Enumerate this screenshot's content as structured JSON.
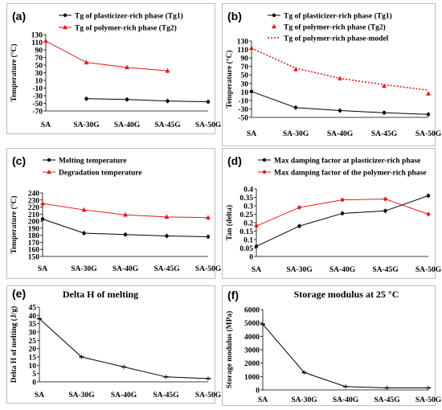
{
  "colors": {
    "black": "#000000",
    "red": "#e41a1c"
  },
  "chart_data": [
    {
      "panel_label": "(a)",
      "type": "line",
      "categories": [
        "SA",
        "SA-30G",
        "SA-40G",
        "SA-45G",
        "SA-50G"
      ],
      "ylabel": "Temperature (°C)",
      "ylim": [
        -70,
        130
      ],
      "yticks": [
        130,
        110,
        90,
        70,
        50,
        30,
        10,
        -10,
        -30,
        -50,
        -70
      ],
      "grid": false,
      "legend_position": "top",
      "series": [
        {
          "name": "Tg of plasticizer-rich phase (Tg1)",
          "color": "#000000",
          "marker": "circle",
          "line": "solid",
          "values": [
            null,
            -38,
            -40,
            -44,
            -46
          ]
        },
        {
          "name": "Tg of polymer-rich phase (Tg2)",
          "color": "#e41a1c",
          "marker": "triangle",
          "line": "solid",
          "values": [
            113,
            57,
            44,
            35,
            null
          ]
        }
      ]
    },
    {
      "panel_label": "(b)",
      "type": "line",
      "categories": [
        "SA",
        "SA-30G",
        "SA-40G",
        "SA-45G",
        "SA-50G"
      ],
      "ylabel": "Temperature (°C)",
      "ylim": [
        -50,
        130
      ],
      "yticks": [
        130,
        110,
        90,
        70,
        50,
        30,
        10,
        -10,
        -30,
        -50
      ],
      "grid": false,
      "legend_position": "top",
      "series": [
        {
          "name": "Tg of plasticizer-rich phase (Tg1)",
          "color": "#000000",
          "marker": "circle",
          "line": "solid",
          "values": [
            11,
            -27,
            -34,
            -39,
            -43
          ]
        },
        {
          "name": "Tg of polymer-rich phase (Tg2)",
          "color": "#e41a1c",
          "marker": "triangle",
          "line": "none",
          "values": [
            113,
            63,
            42,
            24,
            6
          ]
        },
        {
          "name": "Tg of polymer-rich phase-model",
          "color": "#e41a1c",
          "marker": "none",
          "line": "dotted",
          "values": [
            113,
            66,
            42,
            27,
            14
          ]
        }
      ]
    },
    {
      "panel_label": "(c)",
      "type": "line",
      "categories": [
        "SA",
        "SA-30G",
        "SA-40G",
        "SA-45G",
        "SA-50G"
      ],
      "ylabel": "Temperature (°C)",
      "ylim": [
        150,
        240
      ],
      "yticks": [
        240,
        230,
        220,
        210,
        200,
        190,
        180,
        170,
        160,
        150
      ],
      "grid": false,
      "legend_position": "top",
      "series": [
        {
          "name": "Melting temperature",
          "color": "#000000",
          "marker": "circle",
          "line": "solid",
          "values": [
            203,
            183,
            181,
            179,
            178
          ]
        },
        {
          "name": "Degradation temperature",
          "color": "#e41a1c",
          "marker": "triangle",
          "line": "solid",
          "values": [
            225,
            216,
            209,
            206,
            205
          ]
        }
      ]
    },
    {
      "panel_label": "(d)",
      "type": "line",
      "categories": [
        "SA",
        "SA-30G",
        "SA-40G",
        "SA-45G",
        "SA-50G"
      ],
      "ylabel": "Tan (delta)",
      "ylim": [
        0,
        0.4
      ],
      "yticks": [
        0.4,
        0.35,
        0.3,
        0.25,
        0.2,
        0.15,
        0.1,
        0.05,
        0
      ],
      "grid": false,
      "legend_position": "top",
      "series": [
        {
          "name": "Max damping factor at plasticizer-rich phase",
          "color": "#000000",
          "marker": "circle",
          "line": "solid",
          "values": [
            0.06,
            0.18,
            0.255,
            0.27,
            0.36
          ]
        },
        {
          "name": "Max damping factor of the polymer-rich phase",
          "color": "#e41a1c",
          "marker": "circle",
          "line": "solid",
          "values": [
            0.18,
            0.29,
            0.335,
            0.34,
            0.25
          ]
        }
      ]
    },
    {
      "panel_label": "(e)",
      "type": "line",
      "title": "Delta H of melting",
      "categories": [
        "SA",
        "SA-30G",
        "SA-40G",
        "SA-45G",
        "SA-50G"
      ],
      "ylabel": "Delta H of melting (J/g)",
      "ylim": [
        0,
        45
      ],
      "yticks": [
        45,
        40,
        35,
        30,
        25,
        20,
        15,
        10,
        5,
        0
      ],
      "grid": false,
      "series": [
        {
          "name": "",
          "color": "#000000",
          "marker": "dash",
          "line": "solid",
          "values": [
            38,
            15,
            9,
            3,
            2
          ]
        }
      ]
    },
    {
      "panel_label": "(f)",
      "type": "line",
      "title": "Storage modulus at 25 °C",
      "categories": [
        "SA",
        "SA-30G",
        "SA-40G",
        "SA-45G",
        "SA-50G"
      ],
      "ylabel": "Storage modulus (MPa)",
      "ylim": [
        0,
        6000
      ],
      "yticks": [
        6000,
        5000,
        4000,
        3000,
        2000,
        1000,
        0
      ],
      "grid": false,
      "series": [
        {
          "name": "",
          "color": "#000000",
          "marker": "dash",
          "line": "solid",
          "values": [
            4900,
            1300,
            250,
            150,
            150
          ]
        }
      ]
    }
  ]
}
